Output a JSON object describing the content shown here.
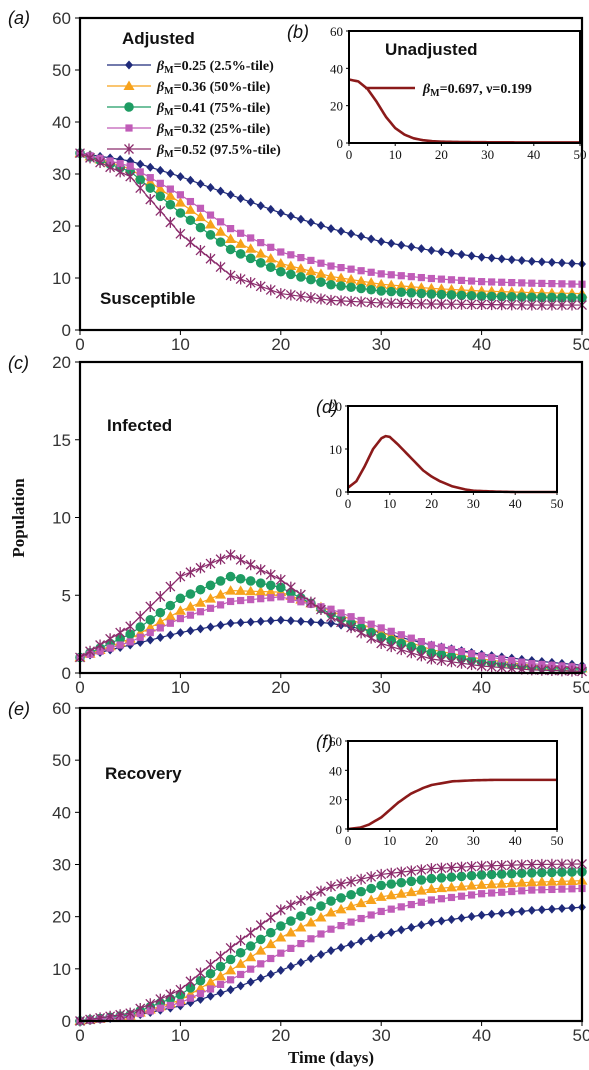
{
  "chart_data": [
    {
      "type": "line",
      "panel_label": "(a)",
      "title": "Adjusted",
      "annotation": "Susceptible",
      "xlim": [
        0,
        50
      ],
      "ylim": [
        0,
        60
      ],
      "xticks": [
        0,
        10,
        20,
        30,
        40,
        50
      ],
      "yticks": [
        0,
        10,
        20,
        30,
        40,
        50,
        60
      ],
      "series": [
        {
          "name": "βM=0.25 (2.5%-tile)",
          "color": "#1f2a7a",
          "marker": "diamond",
          "x": [
            0,
            5,
            10,
            15,
            20,
            25,
            30,
            35,
            40,
            45,
            50
          ],
          "y": [
            34,
            32.5,
            29.5,
            26,
            22.5,
            19.5,
            17,
            15.3,
            14,
            13.2,
            12.7
          ]
        },
        {
          "name": "βM=0.36 (50%-tile)",
          "color": "#f7a21b",
          "marker": "triangle",
          "x": [
            0,
            5,
            10,
            15,
            20,
            25,
            30,
            35,
            40,
            45,
            50
          ],
          "y": [
            34,
            31,
            24.5,
            17.5,
            12.8,
            10.3,
            8.8,
            8,
            7.5,
            7.2,
            7
          ]
        },
        {
          "name": "βM=0.41 (75%-tile)",
          "color": "#1e9c63",
          "marker": "circle",
          "x": [
            0,
            5,
            10,
            15,
            20,
            25,
            30,
            35,
            40,
            45,
            50
          ],
          "y": [
            34,
            30.5,
            22.5,
            15.5,
            11.2,
            8.7,
            7.5,
            6.9,
            6.5,
            6.3,
            6.2
          ]
        },
        {
          "name": "βM=0.32 (25%-tile)",
          "color": "#c05cb8",
          "marker": "square",
          "x": [
            0,
            5,
            10,
            15,
            20,
            25,
            30,
            35,
            40,
            45,
            50
          ],
          "y": [
            34,
            31.5,
            26,
            19.5,
            15,
            12.3,
            10.8,
            9.9,
            9.3,
            9,
            8.8
          ]
        },
        {
          "name": "βM=0.52 (97.5%-tile)",
          "color": "#8b2c6c",
          "marker": "star",
          "x": [
            0,
            5,
            10,
            15,
            20,
            25,
            30,
            35,
            40,
            45,
            50
          ],
          "y": [
            34,
            29.5,
            18.5,
            10.5,
            7,
            5.7,
            5.2,
            5,
            4.9,
            4.8,
            4.8
          ]
        }
      ]
    },
    {
      "type": "line",
      "panel_label": "(b)",
      "title": "Unadjusted",
      "xlim": [
        0,
        50
      ],
      "ylim": [
        0,
        60
      ],
      "xticks": [
        0,
        10,
        20,
        30,
        40,
        50
      ],
      "yticks": [
        0,
        20,
        40,
        60
      ],
      "series": [
        {
          "name": "βM=0.697, ν=0.199",
          "color": "#8b1a1a",
          "x": [
            0,
            2,
            4,
            6,
            8,
            10,
            12,
            14,
            16,
            18,
            20,
            25,
            30,
            40,
            50
          ],
          "y": [
            34,
            33,
            29,
            22,
            14,
            8,
            4.5,
            2.5,
            1.5,
            1,
            0.7,
            0.5,
            0.4,
            0.3,
            0.3
          ]
        }
      ]
    },
    {
      "type": "line",
      "panel_label": "(c)",
      "annotation": "Infected",
      "ylabel": "Population",
      "xlim": [
        0,
        50
      ],
      "ylim": [
        0,
        20
      ],
      "xticks": [
        0,
        10,
        20,
        30,
        40,
        50
      ],
      "yticks": [
        0,
        5,
        10,
        15,
        20
      ],
      "series": [
        {
          "name": "βM=0.25 (2.5%-tile)",
          "color": "#1f2a7a",
          "marker": "diamond",
          "x": [
            0,
            5,
            10,
            15,
            20,
            25,
            30,
            35,
            40,
            45,
            50
          ],
          "y": [
            1,
            1.8,
            2.6,
            3.2,
            3.4,
            3.2,
            2.6,
            1.8,
            1.2,
            0.8,
            0.5
          ]
        },
        {
          "name": "βM=0.36 (50%-tile)",
          "color": "#f7a21b",
          "marker": "triangle",
          "x": [
            0,
            5,
            10,
            15,
            20,
            25,
            30,
            35,
            40,
            45,
            50
          ],
          "y": [
            1,
            2.2,
            4,
            5.3,
            5.2,
            4,
            2.6,
            1.5,
            0.9,
            0.5,
            0.3
          ]
        },
        {
          "name": "βM=0.41 (75%-tile)",
          "color": "#1e9c63",
          "marker": "circle",
          "x": [
            0,
            5,
            10,
            15,
            20,
            25,
            30,
            35,
            40,
            45,
            50
          ],
          "y": [
            1,
            2.5,
            4.8,
            6.2,
            5.5,
            3.8,
            2.3,
            1.3,
            0.7,
            0.4,
            0.25
          ]
        },
        {
          "name": "βM=0.32 (25%-tile)",
          "color": "#c05cb8",
          "marker": "square",
          "x": [
            0,
            5,
            10,
            15,
            20,
            25,
            30,
            35,
            40,
            45,
            50
          ],
          "y": [
            1,
            2,
            3.5,
            4.6,
            4.9,
            4.1,
            2.9,
            1.8,
            1.1,
            0.6,
            0.35
          ]
        },
        {
          "name": "βM=0.52 (97.5%-tile)",
          "color": "#8b2c6c",
          "marker": "star",
          "x": [
            0,
            5,
            10,
            15,
            20,
            25,
            30,
            35,
            40,
            45,
            50
          ],
          "y": [
            1,
            3,
            6.2,
            7.6,
            6,
            3.6,
            1.9,
            0.9,
            0.45,
            0.2,
            0.1
          ]
        }
      ]
    },
    {
      "type": "line",
      "panel_label": "(d)",
      "xlim": [
        0,
        50
      ],
      "ylim": [
        0,
        20
      ],
      "xticks": [
        0,
        10,
        20,
        30,
        40,
        50
      ],
      "yticks": [
        0,
        10,
        20
      ],
      "series": [
        {
          "name": "βM=0.697, ν=0.199",
          "color": "#8b1a1a",
          "x": [
            0,
            2,
            4,
            6,
            8,
            9,
            10,
            12,
            14,
            16,
            18,
            20,
            22,
            25,
            28,
            30,
            35,
            40,
            50
          ],
          "y": [
            1,
            2.5,
            6,
            10,
            12.5,
            13,
            12.8,
            11,
            9,
            7,
            5,
            3.6,
            2.5,
            1.3,
            0.6,
            0.3,
            0.1,
            0,
            0
          ]
        }
      ]
    },
    {
      "type": "line",
      "panel_label": "(e)",
      "annotation": "Recovery",
      "xlabel": "Time (days)",
      "xlim": [
        0,
        50
      ],
      "ylim": [
        0,
        60
      ],
      "xticks": [
        0,
        10,
        20,
        30,
        40,
        50
      ],
      "yticks": [
        0,
        10,
        20,
        30,
        40,
        50,
        60
      ],
      "series": [
        {
          "name": "βM=0.25 (2.5%-tile)",
          "color": "#1f2a7a",
          "marker": "diamond",
          "x": [
            0,
            5,
            10,
            15,
            20,
            25,
            30,
            35,
            40,
            45,
            50
          ],
          "y": [
            0,
            0.8,
            2.9,
            6,
            9.7,
            13.5,
            16.5,
            18.9,
            20.3,
            21.2,
            21.8
          ]
        },
        {
          "name": "βM=0.36 (50%-tile)",
          "color": "#f7a21b",
          "marker": "triangle",
          "x": [
            0,
            5,
            10,
            15,
            20,
            25,
            30,
            35,
            40,
            45,
            50
          ],
          "y": [
            0,
            1,
            4,
            9.7,
            16,
            20.8,
            23.8,
            25.3,
            26.1,
            26.6,
            26.9
          ]
        },
        {
          "name": "βM=0.41 (75%-tile)",
          "color": "#1e9c63",
          "marker": "circle",
          "x": [
            0,
            5,
            10,
            15,
            20,
            25,
            30,
            35,
            40,
            45,
            50
          ],
          "y": [
            0,
            1.2,
            5,
            11.8,
            18.2,
            23,
            26,
            27.3,
            28,
            28.4,
            28.6
          ]
        },
        {
          "name": "βM=0.32 (25%-tile)",
          "color": "#c05cb8",
          "marker": "square",
          "x": [
            0,
            5,
            10,
            15,
            20,
            25,
            30,
            35,
            40,
            45,
            50
          ],
          "y": [
            0,
            0.9,
            3.5,
            7.9,
            13,
            17.6,
            21,
            23.2,
            24.4,
            25.1,
            25.4
          ]
        },
        {
          "name": "βM=0.52 (97.5%-tile)",
          "color": "#8b2c6c",
          "marker": "star",
          "x": [
            0,
            5,
            10,
            15,
            20,
            25,
            30,
            35,
            40,
            45,
            50
          ],
          "y": [
            0,
            1.5,
            6,
            14,
            21.3,
            25.8,
            28.1,
            29.2,
            29.7,
            30,
            30.1
          ]
        }
      ]
    },
    {
      "type": "line",
      "panel_label": "(f)",
      "xlim": [
        0,
        50
      ],
      "ylim": [
        0,
        60
      ],
      "xticks": [
        0,
        10,
        20,
        30,
        40,
        50
      ],
      "yticks": [
        0,
        20,
        40,
        60
      ],
      "series": [
        {
          "name": "βM=0.697, ν=0.199",
          "color": "#8b1a1a",
          "x": [
            0,
            3,
            5,
            8,
            10,
            12,
            15,
            18,
            20,
            25,
            30,
            35,
            40,
            50
          ],
          "y": [
            0,
            1,
            3,
            8,
            13,
            18,
            24,
            28,
            30,
            32.5,
            33.2,
            33.5,
            33.5,
            33.5
          ]
        }
      ]
    }
  ]
}
